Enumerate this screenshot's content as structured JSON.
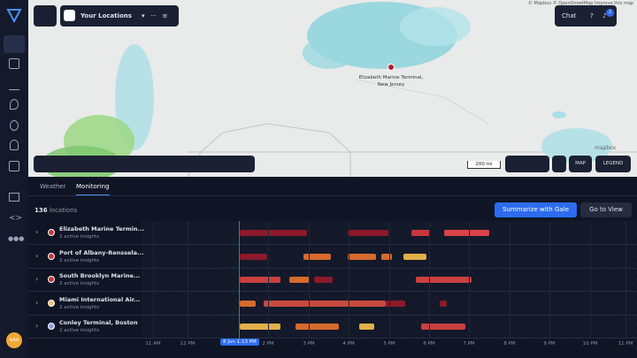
{
  "header": {
    "locations_menu": "Your Locations",
    "chat": "Chat",
    "notifications": "2"
  },
  "map": {
    "attribution": "© Mapbox © OpenStreetMap Improve this map",
    "pin_label": [
      "Elizabeth Marine Terminal,",
      "New Jersey"
    ],
    "logo": "mapbox",
    "scale": "200 mi",
    "map_button": "MAP",
    "legend_button": "LEGEND"
  },
  "sidebar": {
    "avatar": "AAA"
  },
  "panel": {
    "tabs": [
      "Weather",
      "Monitoring"
    ],
    "count": "136",
    "count_label": "locations",
    "summarize": "Summarize with Gale",
    "go_to_view": "Go to View",
    "rows": [
      {
        "name": "Elizabeth Marine Termin...",
        "sub": "2 active insights"
      },
      {
        "name": "Port of Albany-Renssela...",
        "sub": "2 active insights"
      },
      {
        "name": "South Brooklyn Marine...",
        "sub": "2 active insights"
      },
      {
        "name": "Miami International Air...",
        "sub": "2 active insights"
      },
      {
        "name": "Conley Terminal, Boston",
        "sub": "2 active insights"
      }
    ],
    "time_labels": [
      "11 AM",
      "12 PM",
      "2 PM",
      "3 PM",
      "4 PM",
      "5 PM",
      "6 PM",
      "7 PM",
      "8 PM",
      "9 PM",
      "10 PM",
      "11 PM"
    ],
    "now": "8 Jun 1:13 PM"
  }
}
